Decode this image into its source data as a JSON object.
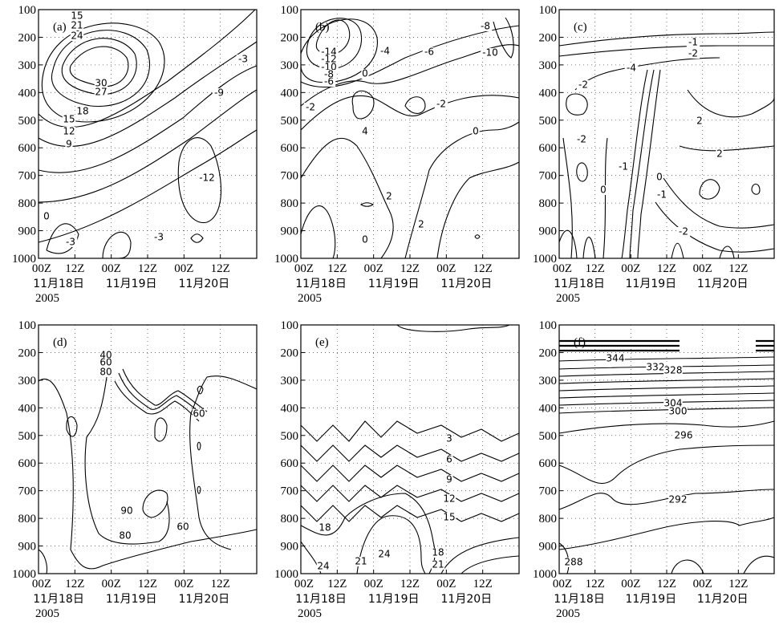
{
  "chart_data": [
    {
      "panel": "(a)",
      "type": "contour",
      "y_ticks": [
        "100",
        "200",
        "300",
        "400",
        "500",
        "600",
        "700",
        "800",
        "900",
        "1000"
      ],
      "x_ticks": [
        "00Z",
        "12Z",
        "00Z",
        "12Z",
        "00Z",
        "12Z"
      ],
      "x_dates": [
        "11月18日",
        "11月19日",
        "11月20日"
      ],
      "year": "2005",
      "contour_labels": [
        "15",
        "21",
        "24",
        "30",
        "27",
        "18",
        "15",
        "12",
        "9",
        "-3",
        "-9",
        "-12",
        "0",
        "-3",
        "-3"
      ]
    },
    {
      "panel": "(b)",
      "type": "contour",
      "y_ticks": [
        "100",
        "200",
        "300",
        "400",
        "500",
        "600",
        "700",
        "800",
        "900",
        "1000"
      ],
      "x_ticks": [
        "00Z",
        "12Z",
        "00Z",
        "12Z",
        "00Z",
        "12Z"
      ],
      "x_dates": [
        "11月18日",
        "11月19日",
        "11月20日"
      ],
      "year": "2005",
      "contour_labels": [
        "-8",
        "-14",
        "-12",
        "-10",
        "-8",
        "-6",
        "-4",
        "-6",
        "-10",
        "0",
        "-2",
        "4",
        "-2",
        "0",
        "2",
        "2",
        "0"
      ]
    },
    {
      "panel": "(c)",
      "type": "contour",
      "y_ticks": [
        "100",
        "200",
        "300",
        "400",
        "500",
        "600",
        "700",
        "800",
        "900",
        "1000"
      ],
      "x_ticks": [
        "00Z",
        "12Z",
        "00Z",
        "12Z",
        "00Z",
        "12Z"
      ],
      "x_dates": [
        "11月18日",
        "11月19日",
        "11月20日"
      ],
      "year": "2005",
      "contour_labels": [
        "-1",
        "-2",
        "-4",
        "-2",
        "2",
        "-2",
        "2",
        "-1",
        "0",
        "0",
        "-1",
        "-2"
      ]
    },
    {
      "panel": "(d)",
      "type": "contour",
      "y_ticks": [
        "100",
        "200",
        "300",
        "400",
        "500",
        "600",
        "700",
        "800",
        "900",
        "1000"
      ],
      "x_ticks": [
        "00Z",
        "12Z",
        "00Z",
        "12Z",
        "00Z",
        "12Z"
      ],
      "x_dates": [
        "11月18日",
        "11月19日",
        "11月20日"
      ],
      "year": "2005",
      "contour_labels": [
        "40",
        "60",
        "80",
        "60",
        "90",
        "80",
        "60"
      ]
    },
    {
      "panel": "(e)",
      "type": "contour",
      "y_ticks": [
        "100",
        "200",
        "300",
        "400",
        "500",
        "600",
        "700",
        "800",
        "900",
        "1000"
      ],
      "x_ticks": [
        "00Z",
        "12Z",
        "00Z",
        "12Z",
        "00Z",
        "12Z"
      ],
      "x_dates": [
        "11月18日",
        "11月19日",
        "11月20日"
      ],
      "year": "2005",
      "contour_labels": [
        "3",
        "6",
        "9",
        "12",
        "15",
        "18",
        "24",
        "21",
        "24",
        "18",
        "21"
      ]
    },
    {
      "panel": "(f)",
      "type": "contour",
      "y_ticks": [
        "100",
        "200",
        "300",
        "400",
        "500",
        "600",
        "700",
        "800",
        "900",
        "1000"
      ],
      "x_ticks": [
        "00Z",
        "12Z",
        "00Z",
        "12Z",
        "00Z",
        "12Z"
      ],
      "x_dates": [
        "11月18日",
        "11月19日",
        "11月20日"
      ],
      "year": "2005",
      "contour_labels": [
        "344",
        "332",
        "328",
        "304",
        "300",
        "296",
        "292",
        "288"
      ]
    }
  ]
}
